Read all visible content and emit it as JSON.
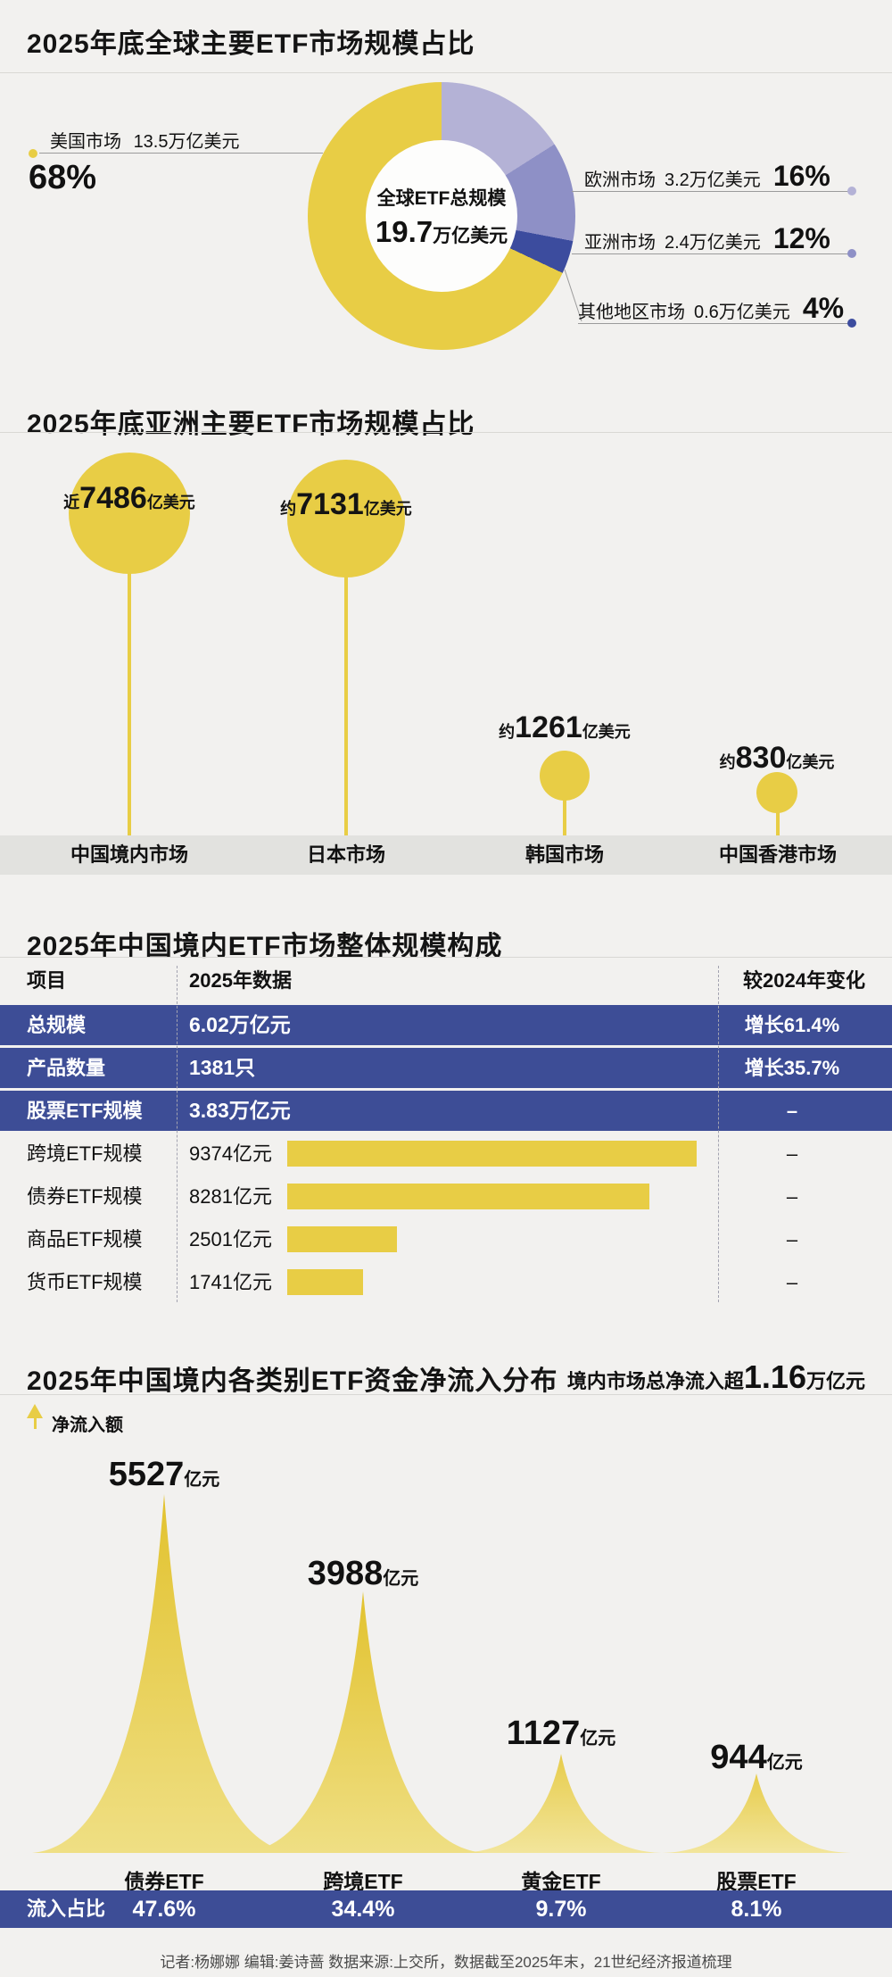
{
  "colors": {
    "background": "#f2f1ef",
    "yellow": "#e8cd45",
    "navy": "#3d4d96",
    "purple_light": "#b4b2d6",
    "purple_mid": "#8e90c6",
    "navy_slice": "#3c4c9e",
    "band_gray": "#e2e2df"
  },
  "global_section": {
    "title": "2025年底全球主要ETF市场规模占比",
    "center_label": "全球ETF总规模",
    "center_value_num": "19.7",
    "center_value_unit": "万亿美元",
    "slices": [
      {
        "label": "美国市场",
        "value": "13.5万亿美元",
        "pct": "68%",
        "pct_num": 68,
        "color": "#e8cd45"
      },
      {
        "label": "欧洲市场",
        "value": "3.2万亿美元",
        "pct": "16%",
        "pct_num": 16,
        "color": "#b4b2d6"
      },
      {
        "label": "亚洲市场",
        "value": "2.4万亿美元",
        "pct": "12%",
        "pct_num": 12,
        "color": "#8e90c6"
      },
      {
        "label": "其他地区市场",
        "value": "0.6万亿美元",
        "pct": "4%",
        "pct_num": 4,
        "color": "#3c4c9e"
      }
    ]
  },
  "asia_section": {
    "title": "2025年底亚洲主要ETF市场规模占比",
    "markets": [
      {
        "prefix": "近",
        "num": "7486",
        "unit": "亿美元",
        "name": "中国境内市场"
      },
      {
        "prefix": "约",
        "num": "7131",
        "unit": "亿美元",
        "name": "日本市场"
      },
      {
        "prefix": "约",
        "num": "1261",
        "unit": "亿美元",
        "name": "韩国市场"
      },
      {
        "prefix": "约",
        "num": "830",
        "unit": "亿美元",
        "name": "中国香港市场"
      }
    ]
  },
  "table_section": {
    "title": "2025年中国境内ETF市场整体规模构成",
    "headers": [
      "项目",
      "2025年数据",
      "较2024年变化"
    ],
    "rows": [
      {
        "item": "总规模",
        "value": "6.02万亿元",
        "change": "增长61.4%",
        "style": "navy"
      },
      {
        "item": "产品数量",
        "value": "1381只",
        "change": "增长35.7%",
        "style": "navy"
      },
      {
        "item": "股票ETF规模",
        "value": "3.83万亿元",
        "change": "–",
        "style": "navy"
      },
      {
        "item": "跨境ETF规模",
        "value": "9374亿元",
        "change": "–",
        "style": "bar",
        "bar_value": 9374
      },
      {
        "item": "债券ETF规模",
        "value": "8281亿元",
        "change": "–",
        "style": "bar",
        "bar_value": 8281
      },
      {
        "item": "商品ETF规模",
        "value": "2501亿元",
        "change": "–",
        "style": "bar",
        "bar_value": 2501
      },
      {
        "item": "货币ETF规模",
        "value": "1741亿元",
        "change": "–",
        "style": "bar",
        "bar_value": 1741
      }
    ]
  },
  "inflow_section": {
    "title": "2025年中国境内各类别ETF资金净流入分布",
    "total_prefix": "境内市场总净流入超",
    "total_num": "1.16",
    "total_unit": "万亿元",
    "axis_label": "净流入额",
    "share_label": "流入占比",
    "peaks": [
      {
        "num": "5527",
        "unit": "亿元",
        "name": "债券ETF",
        "share": "47.6%"
      },
      {
        "num": "3988",
        "unit": "亿元",
        "name": "跨境ETF",
        "share": "34.4%"
      },
      {
        "num": "1127",
        "unit": "亿元",
        "name": "黄金ETF",
        "share": "9.7%"
      },
      {
        "num": "944",
        "unit": "亿元",
        "name": "股票ETF",
        "share": "8.1%"
      }
    ]
  },
  "footer": "记者:杨娜娜  编辑:姜诗蔷  数据来源:上交所，数据截至2025年末，21世纪经济报道梳理",
  "chart_data": [
    {
      "type": "pie",
      "title": "2025年底全球主要ETF市场规模占比",
      "labels": [
        "美国市场",
        "欧洲市场",
        "亚洲市场",
        "其他地区市场"
      ],
      "values_pct": [
        68,
        16,
        12,
        4
      ],
      "values_text": [
        "13.5万亿美元",
        "3.2万亿美元",
        "2.4万亿美元",
        "0.6万亿美元"
      ],
      "center_text": "全球ETF总规模 19.7万亿美元",
      "donut": true,
      "colors": [
        "#e8cd45",
        "#b4b2d6",
        "#8e90c6",
        "#3c4c9e"
      ]
    },
    {
      "type": "bar",
      "subtype": "bubble-lollipop",
      "title": "2025年底亚洲主要ETF市场规模占比",
      "categories": [
        "中国境内市场",
        "日本市场",
        "韩国市场",
        "中国香港市场"
      ],
      "values": [
        7486,
        7131,
        1261,
        830
      ],
      "value_prefixes": [
        "近",
        "约",
        "约",
        "约"
      ],
      "unit": "亿美元"
    },
    {
      "type": "table",
      "title": "2025年中国境内ETF市场整体规模构成",
      "columns": [
        "项目",
        "2025年数据",
        "较2024年变化"
      ],
      "rows": [
        [
          "总规模",
          "6.02万亿元",
          "增长61.4%"
        ],
        [
          "产品数量",
          "1381只",
          "增长35.7%"
        ],
        [
          "股票ETF规模",
          "3.83万亿元",
          "–"
        ],
        [
          "跨境ETF规模",
          "9374亿元",
          "–"
        ],
        [
          "债券ETF规模",
          "8281亿元",
          "–"
        ],
        [
          "商品ETF规模",
          "2501亿元",
          "–"
        ],
        [
          "货币ETF规模",
          "1741亿元",
          "–"
        ]
      ],
      "bar_values": {
        "跨境ETF规模": 9374,
        "债券ETF规模": 8281,
        "商品ETF规模": 2501,
        "货币ETF规模": 1741
      },
      "bar_unit": "亿元"
    },
    {
      "type": "area",
      "subtype": "peaks",
      "title": "2025年中国境内各类别ETF资金净流入分布",
      "annotation": "境内市场总净流入超1.16万亿元",
      "ylabel": "净流入额",
      "categories": [
        "债券ETF",
        "跨境ETF",
        "黄金ETF",
        "股票ETF"
      ],
      "values": [
        5527,
        3988,
        1127,
        944
      ],
      "unit": "亿元",
      "shares_label": "流入占比",
      "shares_pct": [
        47.6,
        34.4,
        9.7,
        8.1
      ]
    }
  ]
}
